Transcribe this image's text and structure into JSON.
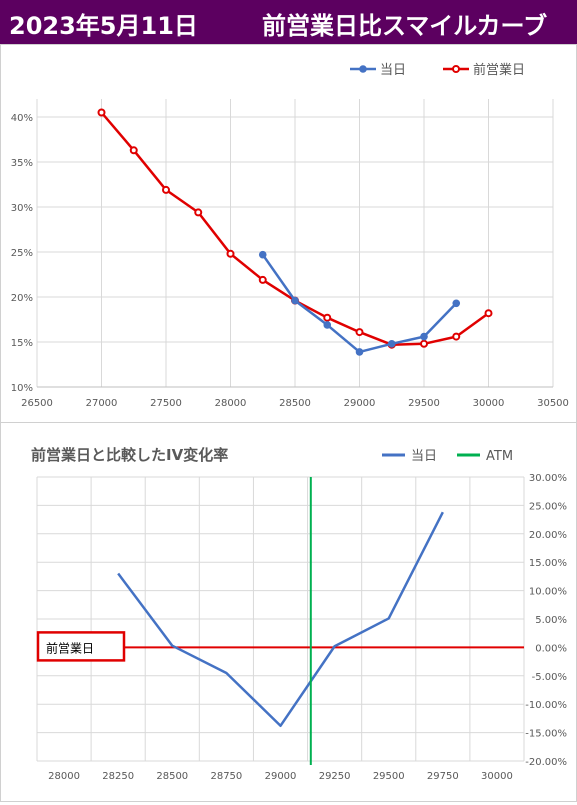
{
  "header": {
    "date": "2023年5月11日",
    "title": "前営業日比スマイルカーブ"
  },
  "chart_data": [
    {
      "type": "line",
      "title": "",
      "xlim": [
        26500,
        30500
      ],
      "ylim": [
        0.1,
        0.42
      ],
      "x_ticks": [
        26500,
        27000,
        27500,
        28000,
        28500,
        29000,
        29500,
        30000,
        30500
      ],
      "y_ticks": [
        {
          "v": 0.1,
          "label": "10%"
        },
        {
          "v": 0.15,
          "label": "15%"
        },
        {
          "v": 0.2,
          "label": "20%"
        },
        {
          "v": 0.25,
          "label": "25%"
        },
        {
          "v": 0.3,
          "label": "30%"
        },
        {
          "v": 0.35,
          "label": "35%"
        },
        {
          "v": 0.4,
          "label": "40%"
        }
      ],
      "legend_position": "top-right",
      "grid": true,
      "series": [
        {
          "name": "当日",
          "color": "#4472c4",
          "points": [
            [
              28250,
              0.247
            ],
            [
              28500,
              0.196
            ],
            [
              28750,
              0.169
            ],
            [
              29000,
              0.139
            ],
            [
              29250,
              0.148
            ],
            [
              29500,
              0.156
            ],
            [
              29750,
              0.193
            ]
          ]
        },
        {
          "name": "前営業日",
          "color": "#e00000",
          "points": [
            [
              27000,
              0.405
            ],
            [
              27250,
              0.363
            ],
            [
              27500,
              0.319
            ],
            [
              27750,
              0.294
            ],
            [
              28000,
              0.248
            ],
            [
              28250,
              0.219
            ],
            [
              28500,
              0.196
            ],
            [
              28750,
              0.177
            ],
            [
              29000,
              0.161
            ],
            [
              29250,
              0.147
            ],
            [
              29500,
              0.148
            ],
            [
              29750,
              0.156
            ],
            [
              30000,
              0.182
            ]
          ]
        }
      ]
    },
    {
      "type": "line",
      "title": "前営業日と比較したIV変化率",
      "xlim": [
        27875,
        30125
      ],
      "ylim": [
        -0.2,
        0.3
      ],
      "x_ticks": [
        28000,
        28250,
        28500,
        28750,
        29000,
        29250,
        29500,
        29750,
        30000
      ],
      "y_ticks": [
        {
          "v": 0.3,
          "label": "30.00%"
        },
        {
          "v": 0.25,
          "label": "25.00%"
        },
        {
          "v": 0.2,
          "label": "20.00%"
        },
        {
          "v": 0.15,
          "label": "15.00%"
        },
        {
          "v": 0.1,
          "label": "10.00%"
        },
        {
          "v": 0.05,
          "label": "5.00%"
        },
        {
          "v": 0.0,
          "label": "0.00%"
        },
        {
          "v": -0.05,
          "label": "-5.00%"
        },
        {
          "v": -0.1,
          "label": "-10.00%"
        },
        {
          "v": -0.15,
          "label": "-15.00%"
        },
        {
          "v": -0.2,
          "label": "-20.00%"
        }
      ],
      "legend_position": "top-right",
      "grid": true,
      "series": [
        {
          "name": "当日",
          "color": "#4472c4",
          "points": [
            [
              28250,
              0.13
            ],
            [
              28500,
              0.003
            ],
            [
              28750,
              -0.045
            ],
            [
              29000,
              -0.138
            ],
            [
              29250,
              0.002
            ],
            [
              29500,
              0.051
            ],
            [
              29750,
              0.238
            ]
          ]
        },
        {
          "name": "ATM",
          "color": "#00b050",
          "x": 29140
        }
      ],
      "baseline": {
        "label": "前営業日",
        "value": 0.0,
        "color": "#e00000"
      }
    }
  ]
}
